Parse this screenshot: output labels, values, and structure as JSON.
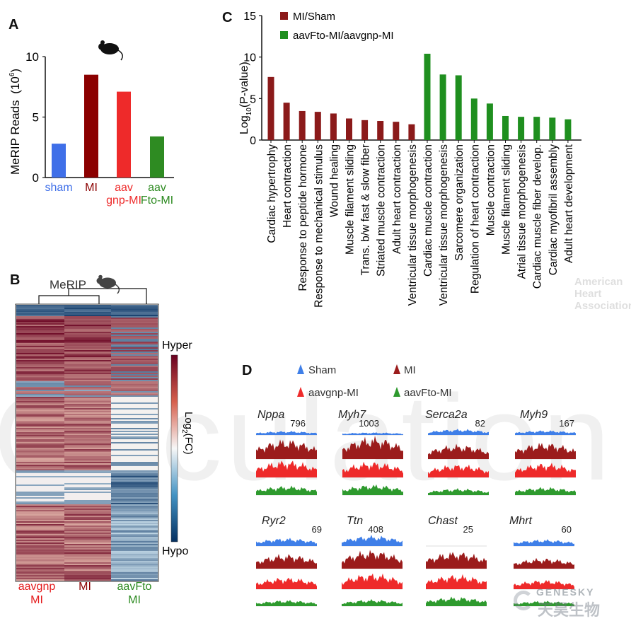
{
  "panels": {
    "A": "A",
    "B": "B",
    "C": "C",
    "D": "D"
  },
  "panelA": {
    "ylabel_main": "MeRIP Reads",
    "ylabel_unit": "(10",
    "ylabel_exp": "6",
    "ylabel_close": ")",
    "mouse_icon": "mouse-icon"
  },
  "panelB": {
    "dendrogram_label": "MeRIP",
    "mouse_icon": "mouse-icon",
    "colorbar_top": "Hyper",
    "colorbar_bottom": "Hypo",
    "colorbar_label_pre": "Log",
    "colorbar_label_sub": "2",
    "colorbar_label_post": "(FC)",
    "columns": [
      {
        "line1": "aavgnp",
        "line2": "MI",
        "color": "#e41a1c"
      },
      {
        "line1": "MI",
        "line2": "",
        "color": "#8b0000"
      },
      {
        "line1": "aavFto",
        "line2": "MI",
        "color": "#2e8b22"
      }
    ]
  },
  "panelC": {
    "ylabel_pre": "Log",
    "ylabel_sub": "10",
    "ylabel_post": "(P-value)",
    "legend": [
      {
        "label": "MI/Sham",
        "color": "#8b1a1a"
      },
      {
        "label": "aavFto-MI/aavgnp-MI",
        "color": "#1f8f1f"
      }
    ]
  },
  "panelD": {
    "legend": [
      {
        "label": "Sham",
        "color": "#3f7fe8"
      },
      {
        "label": "MI",
        "color": "#9b1c1c"
      },
      {
        "label": "aavgnp-MI",
        "color": "#ee2a2a"
      },
      {
        "label": "aavFto-MI",
        "color": "#2e9a2e"
      }
    ],
    "genes": [
      {
        "name": "Nppa",
        "scale": "796"
      },
      {
        "name": "Myh7",
        "scale": "1003"
      },
      {
        "name": "Serca2a",
        "scale": "82"
      },
      {
        "name": "Myh9",
        "scale": "167"
      },
      {
        "name": "Ryr2",
        "scale": "69"
      },
      {
        "name": "Ttn",
        "scale": "408"
      },
      {
        "name": "Chast",
        "scale": "25"
      },
      {
        "name": "Mhrt",
        "scale": "60"
      }
    ]
  },
  "watermarks": {
    "journal": "Circulation",
    "society": [
      "American",
      "Heart",
      "Association"
    ],
    "brand_en": "GENESKY",
    "brand_cn": "天昊生物"
  },
  "chart_data": [
    {
      "type": "bar",
      "panel": "A",
      "categories": [
        "sham",
        "MI",
        "aav gnp-MI",
        "aav Fto-MI"
      ],
      "category_lines": [
        [
          "sham"
        ],
        [
          "MI"
        ],
        [
          "aav",
          "gnp-MI"
        ],
        [
          "aav",
          "Fto-MI"
        ]
      ],
      "values": [
        2.8,
        8.5,
        7.1,
        3.4
      ],
      "colors": [
        "#3f6fe8",
        "#8b0000",
        "#ee2a2a",
        "#2e8b22"
      ],
      "ylim": [
        0,
        10
      ],
      "yticks": [
        0,
        5,
        10
      ],
      "ylabel": "MeRIP Reads (10^6)"
    },
    {
      "type": "heatmap",
      "panel": "B",
      "columns": [
        "aavgnp MI",
        "MI",
        "aavFto MI"
      ],
      "colorbar": [
        "Hyper",
        "Hypo"
      ],
      "colorbar_label": "Log2(FC)"
    },
    {
      "type": "bar",
      "panel": "C",
      "categories": [
        "Cardiac hypertrophy",
        "Heart contraction",
        "Response to peptide hormone",
        "Response to mechanical stimulus",
        "Wound healing",
        "Muscle filament sliding",
        "Trans. b/w fast & slow fiber",
        "Striated muscle contraction",
        "Adult heart contraction",
        "Ventricular tissue morphogenesis",
        "Cardiac muscle contraction",
        "Ventricular tissue morphogenesis",
        "Sarcomere organization",
        "Regulation of heart contraction",
        "Muscle contraction",
        "Muscle filament sliding",
        "Atrial tissue morphogenesis",
        "Cardiac muscle fiber develop.",
        "Cardiac myofibril assembly",
        "Adult heart development"
      ],
      "values": [
        7.6,
        4.5,
        3.5,
        3.4,
        3.2,
        2.6,
        2.4,
        2.3,
        2.2,
        1.9,
        10.4,
        7.9,
        7.8,
        5.0,
        4.4,
        2.9,
        2.8,
        2.8,
        2.7,
        2.5
      ],
      "series_index": [
        0,
        0,
        0,
        0,
        0,
        0,
        0,
        0,
        0,
        0,
        1,
        1,
        1,
        1,
        1,
        1,
        1,
        1,
        1,
        1
      ],
      "series": [
        {
          "name": "MI/Sham",
          "color": "#8b1a1a"
        },
        {
          "name": "aavFto-MI/aavgnp-MI",
          "color": "#1f8f1f"
        }
      ],
      "ylim": [
        0,
        15
      ],
      "yticks": [
        0,
        5,
        10,
        15
      ],
      "ylabel": "Log10(P-value)"
    },
    {
      "type": "area",
      "panel": "D",
      "tracks": [
        "Sham",
        "MI",
        "aavgnp-MI",
        "aavFto-MI"
      ],
      "genes": [
        "Nppa",
        "Myh7",
        "Serca2a",
        "Myh9",
        "Ryr2",
        "Ttn",
        "Chast",
        "Mhrt"
      ],
      "scales": [
        796,
        1003,
        82,
        167,
        69,
        408,
        25,
        60
      ]
    }
  ]
}
